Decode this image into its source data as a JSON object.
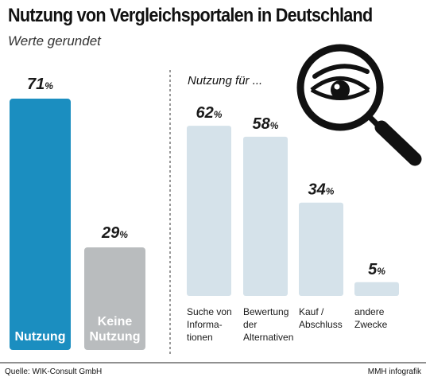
{
  "title": "Nutzung von Vergleichsportalen in Deutschland",
  "subtitle": "Werte gerundet",
  "source": "Quelle: WIK-Consult GmbH",
  "credit": "MMH infografik",
  "colors": {
    "usage": "#1b8ec0",
    "no_usage": "#b9bcbe",
    "purpose": "#d5e2ea",
    "label_light": "#ffffff",
    "label_dark": "#1a1a1a"
  },
  "icon": "magnifier-eye-icon",
  "chart_data": [
    {
      "type": "bar",
      "categories": [
        "Nutzung",
        "Keine Nutzung"
      ],
      "values": [
        71,
        29
      ],
      "value_labels": [
        "71%",
        "29%"
      ],
      "unit": "%",
      "ylim": [
        0,
        100
      ],
      "grid": false
    },
    {
      "type": "bar",
      "title": "Nutzung für ...",
      "categories": [
        "Suche von Informationen",
        "Bewertung der Alternativen",
        "Kauf / Abschluss",
        "andere Zwecke"
      ],
      "category_lines": [
        [
          "Suche von",
          "Informa-",
          "tionen"
        ],
        [
          "Bewertung",
          "der",
          "Alternativen"
        ],
        [
          "Kauf /",
          "Abschluss"
        ],
        [
          "andere",
          "Zwecke"
        ]
      ],
      "values": [
        62,
        58,
        34,
        5
      ],
      "value_labels": [
        "62%",
        "58%",
        "34%",
        "5%"
      ],
      "unit": "%",
      "ylim": [
        0,
        100
      ],
      "grid": false
    }
  ]
}
